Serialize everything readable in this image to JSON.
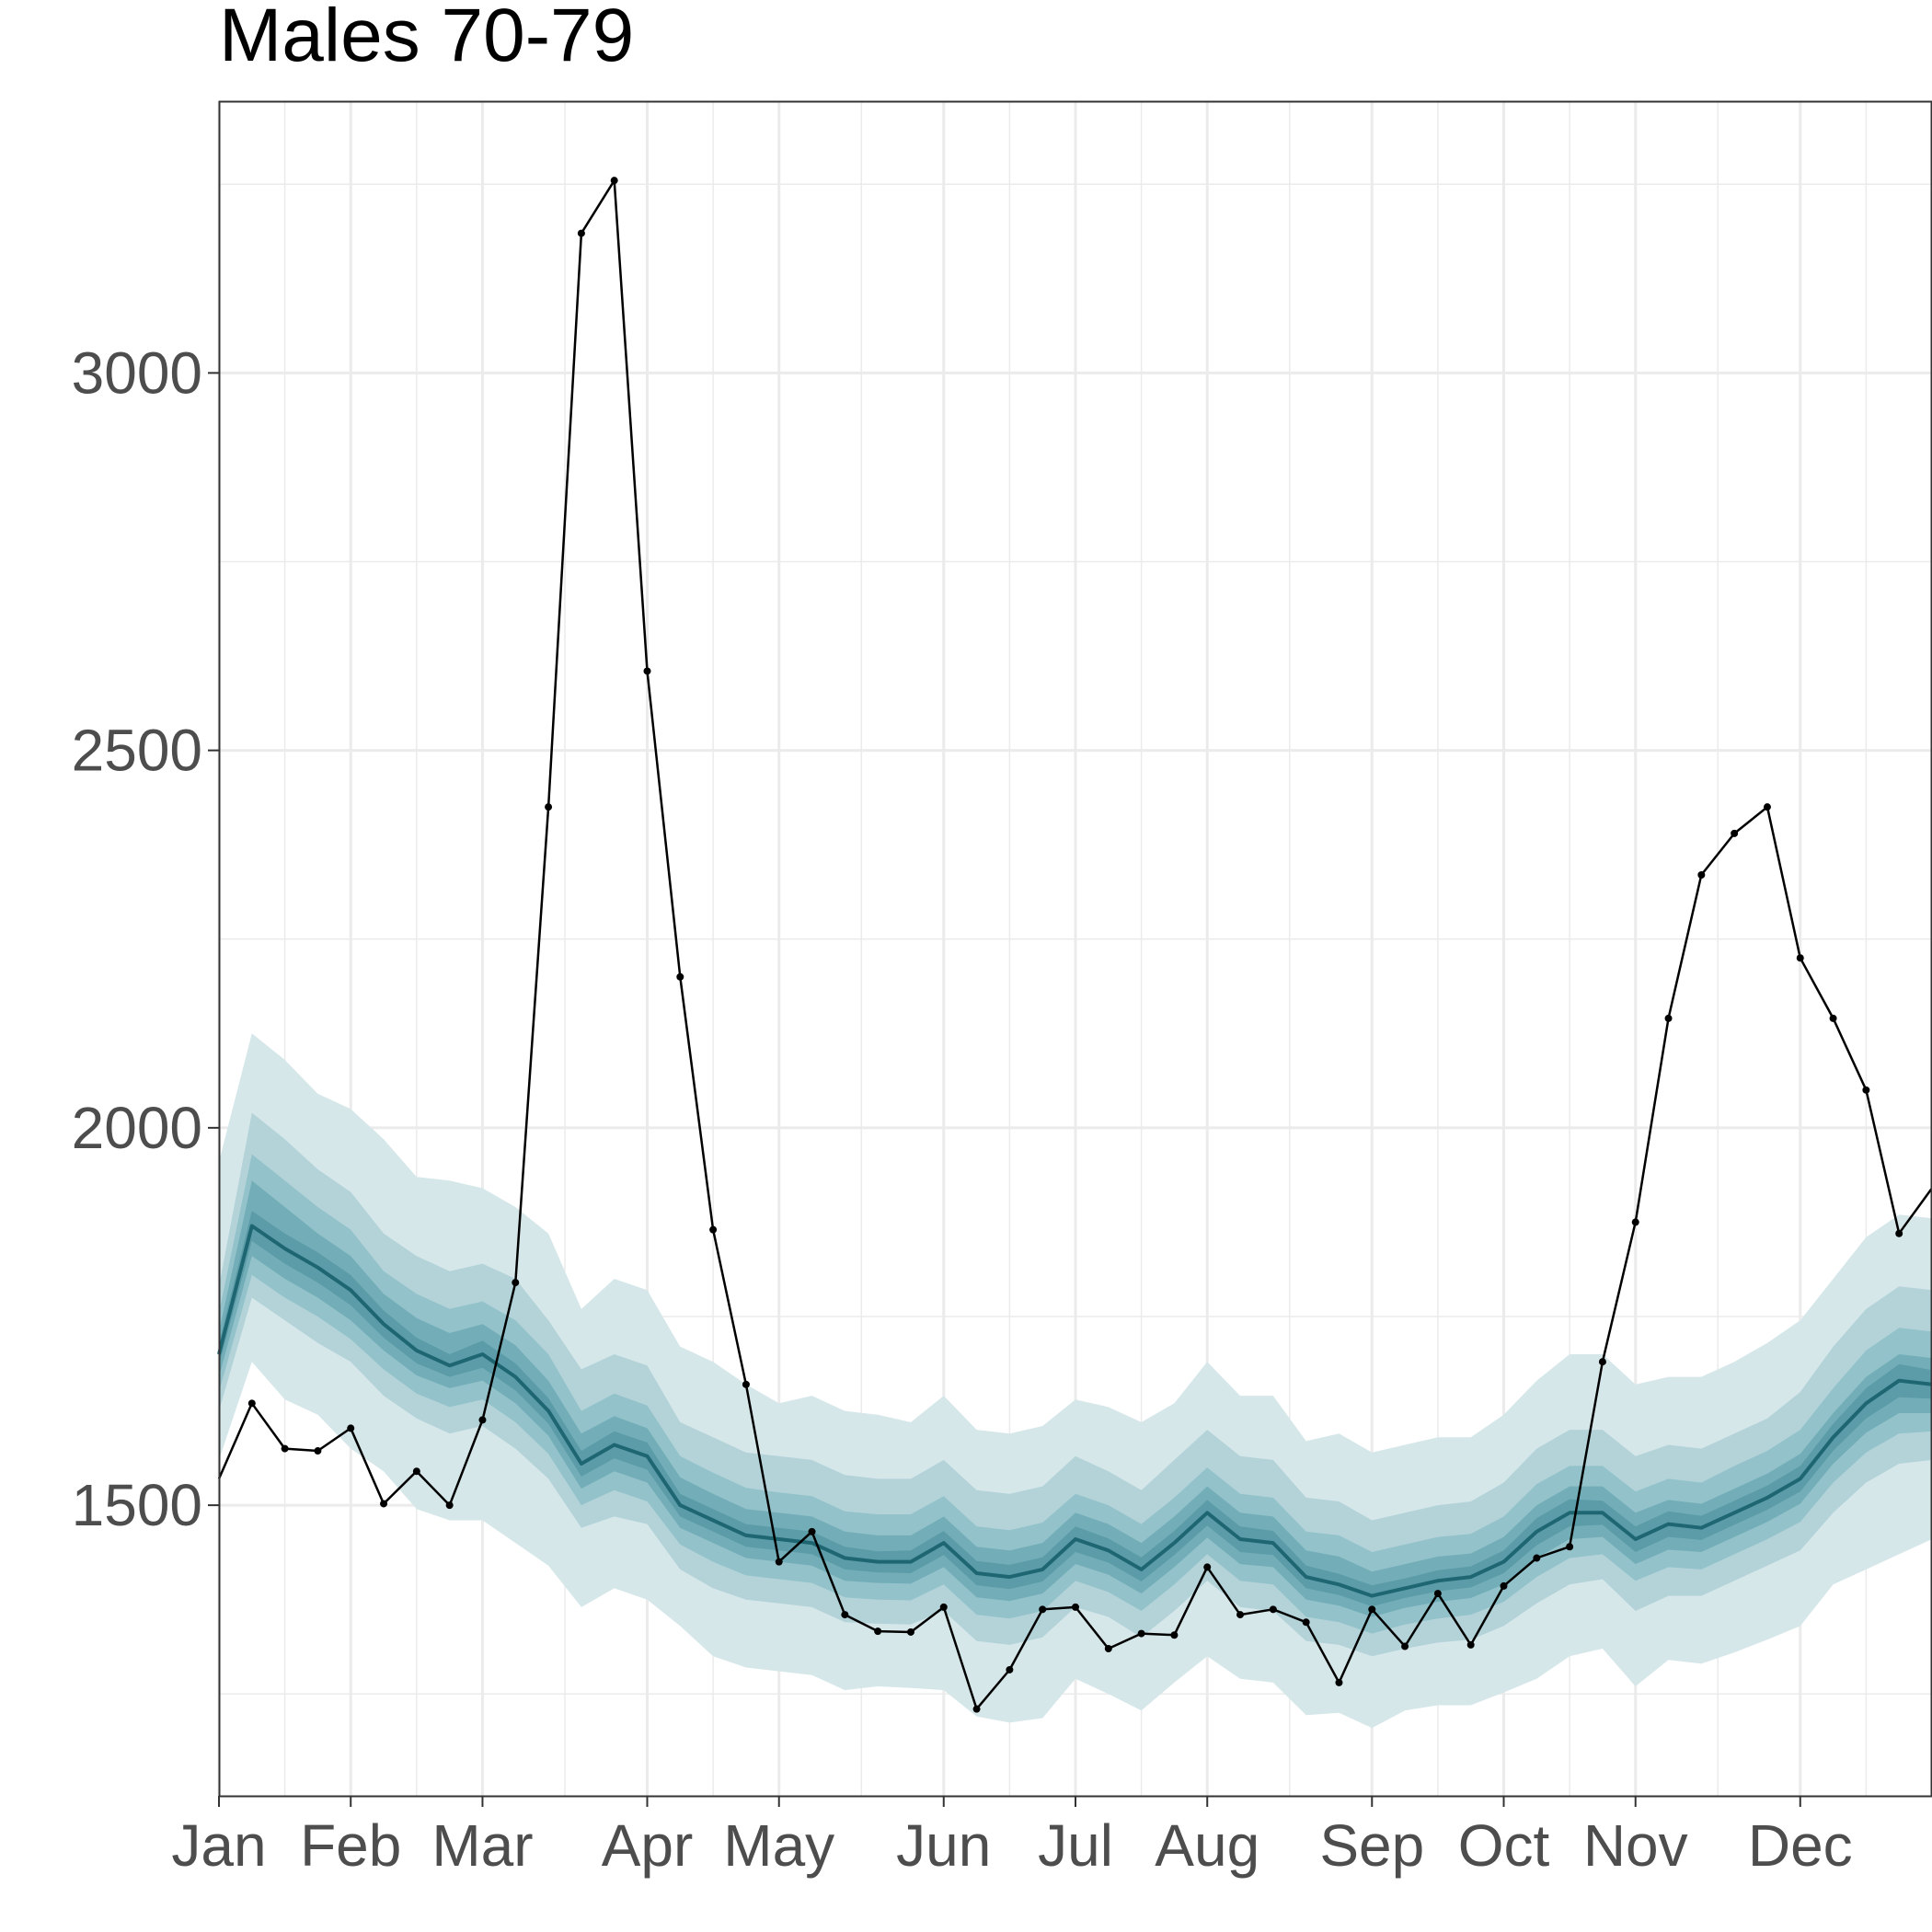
{
  "chart_data": {
    "type": "line",
    "title": "Males 70-79",
    "xlabel": "",
    "ylabel": "",
    "x_unit": "week of year",
    "x_tick_labels": [
      "Jan",
      "Feb",
      "Mar",
      "Apr",
      "May",
      "Jun",
      "Jul",
      "Aug",
      "Sep",
      "Oct",
      "Nov",
      "Dec"
    ],
    "x_tick_positions_week": [
      1,
      5,
      9,
      14,
      18,
      23,
      27,
      31,
      36,
      40,
      44,
      49
    ],
    "xlim": [
      1,
      53
    ],
    "y_ticks": [
      1500,
      2000,
      2500,
      3000
    ],
    "ylim": [
      1115,
      3360
    ],
    "grid": true,
    "legend": "none",
    "colors": {
      "observed_line": "#000000",
      "median_line": "#1f6673",
      "band_outer": "#d6e7ea",
      "band_2": "#b3d3d9",
      "band_3": "#93c2ca",
      "band_4": "#73aeb8",
      "band_inner": "#5b9ca8",
      "grid": "#ebebeb",
      "panel_border": "#333333"
    },
    "series": [
      {
        "role": "observed",
        "x": [
          1,
          2,
          3,
          4,
          5,
          6,
          7,
          8,
          9,
          10,
          11,
          12,
          13,
          14,
          15,
          16,
          17,
          18,
          19,
          20,
          21,
          22,
          23,
          24,
          25,
          26,
          27,
          28,
          29,
          30,
          31,
          32,
          33,
          34,
          35,
          36,
          37,
          38,
          39,
          40,
          41,
          42,
          43,
          44,
          45,
          46,
          47,
          48,
          49,
          50,
          51,
          52,
          53
        ],
        "values": [
          1535,
          1635,
          1575,
          1572,
          1602,
          1502,
          1545,
          1500,
          1613,
          1795,
          2425,
          3185,
          3255,
          2605,
          2200,
          1865,
          1660,
          1425,
          1465,
          1355,
          1333,
          1332,
          1365,
          1230,
          1282,
          1362,
          1365,
          1310,
          1330,
          1328,
          1418,
          1355,
          1362,
          1345,
          1265,
          1362,
          1313,
          1383,
          1315,
          1393,
          1430,
          1445,
          1690,
          1875,
          2145,
          2335,
          2390,
          2425,
          2225,
          2145,
          2050,
          1860,
          1920
        ]
      },
      {
        "role": "expected_median",
        "x": [
          1,
          2,
          3,
          4,
          5,
          6,
          7,
          8,
          9,
          10,
          11,
          12,
          13,
          14,
          15,
          16,
          17,
          18,
          19,
          20,
          21,
          22,
          23,
          24,
          25,
          26,
          27,
          28,
          29,
          30,
          31,
          32,
          33,
          34,
          35,
          36,
          37,
          38,
          39,
          40,
          41,
          42,
          43,
          44,
          45,
          46,
          47,
          48,
          49,
          50,
          51,
          52,
          53
        ],
        "values": [
          1700,
          1870,
          1840,
          1815,
          1785,
          1740,
          1705,
          1685,
          1700,
          1670,
          1625,
          1555,
          1580,
          1565,
          1500,
          1480,
          1460,
          1455,
          1450,
          1430,
          1425,
          1425,
          1450,
          1410,
          1405,
          1415,
          1455,
          1440,
          1415,
          1450,
          1490,
          1455,
          1450,
          1405,
          1395,
          1380,
          1390,
          1400,
          1405,
          1425,
          1465,
          1490,
          1490,
          1455,
          1475,
          1470,
          1490,
          1510,
          1535,
          1590,
          1635,
          1665,
          1660
        ]
      },
      {
        "role": "prediction_interval_outer",
        "x": [
          1,
          2,
          3,
          4,
          5,
          6,
          7,
          8,
          9,
          10,
          11,
          12,
          13,
          14,
          15,
          16,
          17,
          18,
          19,
          20,
          21,
          22,
          23,
          24,
          25,
          26,
          27,
          28,
          29,
          30,
          31,
          32,
          33,
          34,
          35,
          36,
          37,
          38,
          39,
          40,
          41,
          42,
          43,
          44,
          45,
          46,
          47,
          48,
          49,
          50,
          51,
          52,
          53
        ],
        "lower": [
          1560,
          1690,
          1640,
          1620,
          1575,
          1545,
          1495,
          1480,
          1480,
          1450,
          1420,
          1365,
          1390,
          1375,
          1340,
          1300,
          1285,
          1280,
          1275,
          1255,
          1260,
          1258,
          1255,
          1220,
          1212,
          1218,
          1270,
          1250,
          1228,
          1265,
          1300,
          1270,
          1265,
          1222,
          1225,
          1205,
          1228,
          1235,
          1235,
          1252,
          1270,
          1300,
          1310,
          1260,
          1295,
          1290,
          1305,
          1322,
          1340,
          1395,
          1415,
          1435,
          1455
        ],
        "upper": [
          1955,
          2125,
          2090,
          2045,
          2025,
          1985,
          1935,
          1930,
          1920,
          1895,
          1860,
          1760,
          1800,
          1785,
          1710,
          1690,
          1660,
          1635,
          1645,
          1625,
          1620,
          1610,
          1645,
          1600,
          1595,
          1605,
          1640,
          1630,
          1610,
          1635,
          1690,
          1645,
          1645,
          1585,
          1595,
          1570,
          1580,
          1590,
          1590,
          1620,
          1665,
          1700,
          1700,
          1660,
          1670,
          1670,
          1690,
          1715,
          1745,
          1800,
          1855,
          1885,
          1880
        ]
      },
      {
        "role": "prediction_interval_2",
        "x": [
          1,
          2,
          3,
          4,
          5,
          6,
          7,
          8,
          9,
          10,
          11,
          12,
          13,
          14,
          15,
          16,
          17,
          18,
          19,
          20,
          21,
          22,
          23,
          24,
          25,
          26,
          27,
          28,
          29,
          30,
          31,
          32,
          33,
          34,
          35,
          36,
          37,
          38,
          39,
          40,
          41,
          42,
          43,
          44,
          45,
          46,
          47,
          48,
          49,
          50,
          51,
          52,
          53
        ],
        "lower": [
          1625,
          1775,
          1745,
          1715,
          1690,
          1645,
          1615,
          1595,
          1605,
          1575,
          1535,
          1470,
          1485,
          1475,
          1415,
          1390,
          1375,
          1370,
          1365,
          1345,
          1343,
          1342,
          1360,
          1320,
          1315,
          1325,
          1365,
          1352,
          1325,
          1360,
          1400,
          1365,
          1360,
          1320,
          1315,
          1300,
          1310,
          1318,
          1322,
          1340,
          1370,
          1395,
          1402,
          1360,
          1380,
          1380,
          1400,
          1420,
          1440,
          1490,
          1530,
          1555,
          1560
        ],
        "upper": [
          1790,
          2020,
          1985,
          1945,
          1915,
          1860,
          1830,
          1810,
          1820,
          1800,
          1745,
          1680,
          1700,
          1685,
          1610,
          1590,
          1570,
          1565,
          1560,
          1540,
          1535,
          1535,
          1560,
          1520,
          1515,
          1525,
          1565,
          1545,
          1520,
          1560,
          1600,
          1565,
          1560,
          1510,
          1505,
          1480,
          1490,
          1500,
          1505,
          1530,
          1575,
          1600,
          1600,
          1565,
          1580,
          1575,
          1595,
          1615,
          1650,
          1710,
          1760,
          1790,
          1785
        ]
      },
      {
        "role": "prediction_interval_3",
        "x": [
          1,
          2,
          3,
          4,
          5,
          6,
          7,
          8,
          9,
          10,
          11,
          12,
          13,
          14,
          15,
          16,
          17,
          18,
          19,
          20,
          21,
          22,
          23,
          24,
          25,
          26,
          27,
          28,
          29,
          30,
          31,
          32,
          33,
          34,
          35,
          36,
          37,
          38,
          39,
          40,
          41,
          42,
          43,
          44,
          45,
          46,
          47,
          48,
          49,
          50,
          51,
          52,
          53
        ],
        "lower": [
          1650,
          1805,
          1775,
          1750,
          1720,
          1680,
          1648,
          1630,
          1640,
          1610,
          1568,
          1500,
          1520,
          1505,
          1448,
          1425,
          1407,
          1402,
          1397,
          1378,
          1375,
          1374,
          1395,
          1355,
          1350,
          1360,
          1400,
          1385,
          1360,
          1395,
          1435,
          1400,
          1395,
          1352,
          1345,
          1330,
          1342,
          1350,
          1355,
          1372,
          1405,
          1430,
          1435,
          1400,
          1418,
          1415,
          1435,
          1455,
          1478,
          1530,
          1570,
          1595,
          1598
        ],
        "upper": [
          1755,
          1965,
          1930,
          1895,
          1865,
          1810,
          1780,
          1760,
          1770,
          1745,
          1700,
          1625,
          1648,
          1632,
          1565,
          1543,
          1523,
          1517,
          1512,
          1492,
          1488,
          1488,
          1512,
          1472,
          1467,
          1477,
          1515,
          1500,
          1475,
          1510,
          1550,
          1515,
          1510,
          1465,
          1460,
          1438,
          1448,
          1458,
          1462,
          1485,
          1528,
          1552,
          1552,
          1518,
          1535,
          1530,
          1552,
          1572,
          1600,
          1655,
          1705,
          1735,
          1730
        ]
      },
      {
        "role": "prediction_interval_4",
        "x": [
          1,
          2,
          3,
          4,
          5,
          6,
          7,
          8,
          9,
          10,
          11,
          12,
          13,
          14,
          15,
          16,
          17,
          18,
          19,
          20,
          21,
          22,
          23,
          24,
          25,
          26,
          27,
          28,
          29,
          30,
          31,
          32,
          33,
          34,
          35,
          36,
          37,
          38,
          39,
          40,
          41,
          42,
          43,
          44,
          45,
          46,
          47,
          48,
          49,
          50,
          51,
          52,
          53
        ],
        "lower": [
          1670,
          1830,
          1800,
          1775,
          1745,
          1705,
          1672,
          1655,
          1665,
          1635,
          1592,
          1522,
          1545,
          1530,
          1470,
          1450,
          1430,
          1425,
          1420,
          1400,
          1397,
          1396,
          1418,
          1378,
          1373,
          1383,
          1422,
          1408,
          1383,
          1418,
          1457,
          1422,
          1418,
          1375,
          1367,
          1352,
          1364,
          1372,
          1377,
          1395,
          1430,
          1455,
          1458,
          1422,
          1441,
          1438,
          1458,
          1478,
          1502,
          1555,
          1596,
          1622,
          1622
        ],
        "upper": [
          1730,
          1930,
          1895,
          1860,
          1830,
          1780,
          1748,
          1728,
          1740,
          1712,
          1665,
          1595,
          1618,
          1602,
          1537,
          1515,
          1495,
          1490,
          1485,
          1465,
          1460,
          1460,
          1485,
          1445,
          1440,
          1450,
          1490,
          1475,
          1450,
          1485,
          1525,
          1490,
          1485,
          1440,
          1432,
          1412,
          1422,
          1432,
          1436,
          1458,
          1500,
          1525,
          1525,
          1490,
          1507,
          1502,
          1522,
          1542,
          1568,
          1622,
          1670,
          1700,
          1695
        ]
      },
      {
        "role": "prediction_interval_inner",
        "x": [
          1,
          2,
          3,
          4,
          5,
          6,
          7,
          8,
          9,
          10,
          11,
          12,
          13,
          14,
          15,
          16,
          17,
          18,
          19,
          20,
          21,
          22,
          23,
          24,
          25,
          26,
          27,
          28,
          29,
          30,
          31,
          32,
          33,
          34,
          35,
          36,
          37,
          38,
          39,
          40,
          41,
          42,
          43,
          44,
          45,
          46,
          47,
          48,
          49,
          50,
          51,
          52,
          53
        ],
        "lower": [
          1685,
          1850,
          1820,
          1795,
          1765,
          1722,
          1688,
          1670,
          1682,
          1652,
          1608,
          1538,
          1562,
          1547,
          1485,
          1465,
          1445,
          1440,
          1435,
          1415,
          1411,
          1410,
          1434,
          1394,
          1389,
          1399,
          1438,
          1424,
          1399,
          1434,
          1473,
          1438,
          1434,
          1390,
          1381,
          1366,
          1377,
          1386,
          1391,
          1410,
          1447,
          1472,
          1474,
          1438,
          1458,
          1454,
          1474,
          1494,
          1518,
          1572,
          1615,
          1643,
          1641
        ],
        "upper": [
          1715,
          1890,
          1860,
          1835,
          1805,
          1758,
          1722,
          1700,
          1718,
          1688,
          1642,
          1572,
          1598,
          1583,
          1515,
          1495,
          1475,
          1470,
          1465,
          1445,
          1439,
          1440,
          1466,
          1426,
          1421,
          1431,
          1472,
          1456,
          1431,
          1466,
          1507,
          1472,
          1466,
          1420,
          1409,
          1394,
          1403,
          1414,
          1419,
          1440,
          1483,
          1508,
          1506,
          1472,
          1492,
          1486,
          1506,
          1526,
          1552,
          1608,
          1655,
          1687,
          1679
        ]
      }
    ]
  }
}
